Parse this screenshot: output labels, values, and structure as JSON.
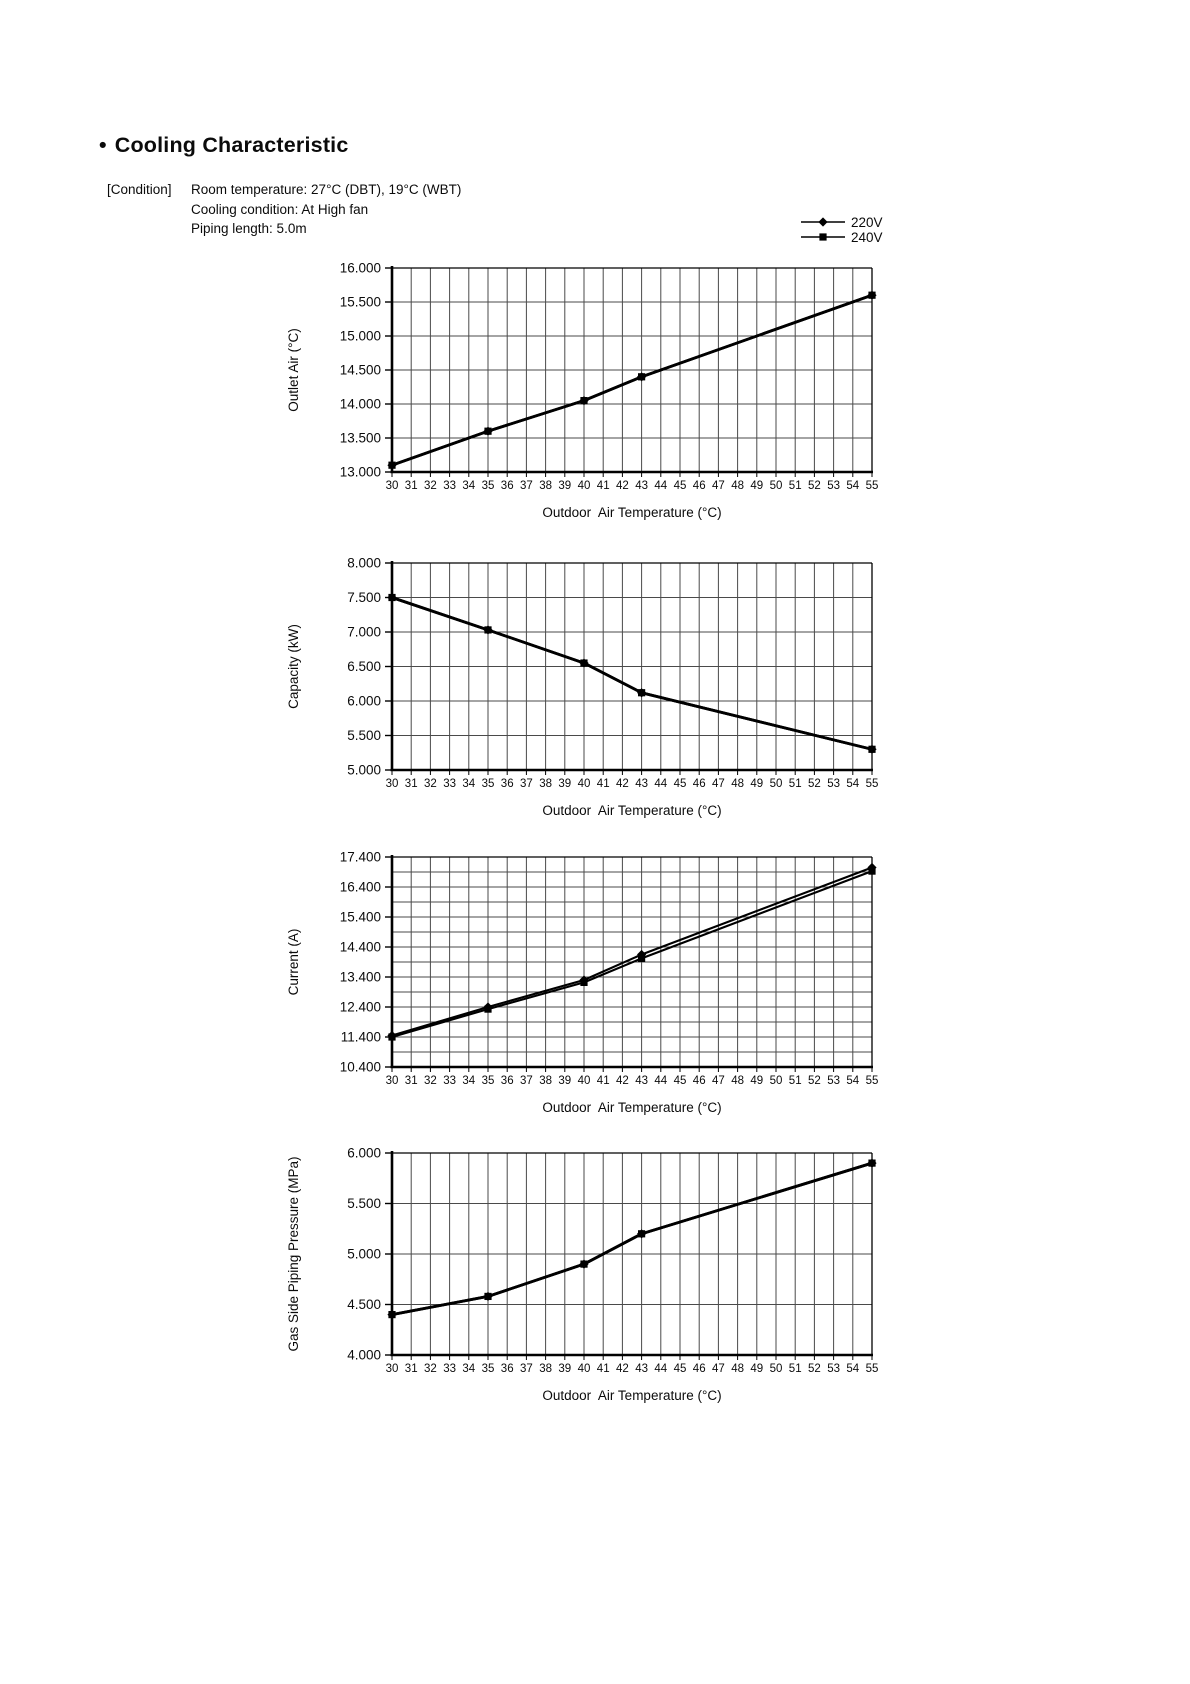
{
  "page": {
    "title_bullet": "•",
    "title": "Cooling Characteristic",
    "conditions": {
      "prefix": "[Condition]",
      "line1": "Room temperature: 27°C (DBT), 19°C (WBT)",
      "line2": "Cooling condition: At High fan",
      "line3": "Piping length: 5.0m"
    }
  },
  "legend": {
    "items": [
      {
        "label": "220V",
        "marker": "diamond"
      },
      {
        "label": "240V",
        "marker": "square"
      }
    ]
  },
  "x_axis": {
    "title": "Outdoor  Air Temperature (°C)",
    "min": 30,
    "max": 55,
    "step": 1
  },
  "colors": {
    "line": "#000000",
    "grid": "#4a4a4a",
    "text": "#0b0b0b"
  },
  "chart_data": [
    {
      "type": "line",
      "ylabel": "Outlet Air (°C)",
      "ylim": [
        13.0,
        16.0
      ],
      "ygrid_step": 0.5,
      "yticks": {
        "values": [
          16.0,
          15.5,
          15.0,
          14.5,
          14.0,
          13.5,
          13.0
        ],
        "labels": [
          "16.000",
          "15.500",
          "15.000",
          "14.500",
          "14.000",
          "13.500",
          "13.000"
        ]
      },
      "x": [
        30,
        35,
        40,
        43,
        55
      ],
      "series": [
        {
          "name": "220V",
          "marker": "diamond",
          "values": [
            13.1,
            13.6,
            14.05,
            14.4,
            15.6
          ]
        },
        {
          "name": "240V",
          "marker": "square",
          "values": [
            13.1,
            13.6,
            14.05,
            14.4,
            15.6
          ]
        }
      ]
    },
    {
      "type": "line",
      "ylabel": "Capacity (kW)",
      "ylim": [
        5.0,
        8.0
      ],
      "ygrid_step": 0.5,
      "yticks": {
        "values": [
          8.0,
          7.5,
          7.0,
          6.5,
          6.0,
          5.5,
          5.0
        ],
        "labels": [
          "8.000",
          "7.500",
          "7.000",
          "6.500",
          "6.000",
          "5.500",
          "5.000"
        ]
      },
      "x": [
        30,
        35,
        40,
        43,
        55
      ],
      "series": [
        {
          "name": "220V",
          "marker": "diamond",
          "values": [
            7.5,
            7.03,
            6.55,
            6.12,
            5.3
          ]
        },
        {
          "name": "240V",
          "marker": "square",
          "values": [
            7.5,
            7.03,
            6.55,
            6.12,
            5.3
          ]
        }
      ]
    },
    {
      "type": "line",
      "ylabel": "Current (A)",
      "ylim": [
        10.4,
        17.4
      ],
      "ygrid_step": 0.5,
      "yticks": {
        "values": [
          17.4,
          16.4,
          15.4,
          14.4,
          13.4,
          12.4,
          11.4,
          10.4
        ],
        "labels": [
          "17.400",
          "16.400",
          "15.400",
          "14.400",
          "13.400",
          "12.400",
          "11.400",
          "10.400"
        ]
      },
      "x": [
        30,
        35,
        40,
        43,
        55
      ],
      "series": [
        {
          "name": "220V",
          "marker": "diamond",
          "values": [
            11.45,
            12.4,
            13.3,
            14.15,
            17.05
          ]
        },
        {
          "name": "240V",
          "marker": "square",
          "values": [
            11.4,
            12.33,
            13.22,
            14.02,
            16.93
          ]
        }
      ]
    },
    {
      "type": "line",
      "ylabel": "Gas Side Piping Pressure (MPa)",
      "ylim": [
        4.0,
        6.0
      ],
      "ygrid_step": 0.5,
      "yticks": {
        "values": [
          6.0,
          5.5,
          5.0,
          4.5,
          4.0
        ],
        "labels": [
          "6.000",
          "5.500",
          "5.000",
          "4.500",
          "4.000"
        ]
      },
      "x": [
        30,
        35,
        40,
        43,
        55
      ],
      "series": [
        {
          "name": "220V",
          "marker": "diamond",
          "values": [
            4.4,
            4.58,
            4.9,
            5.2,
            5.9
          ]
        },
        {
          "name": "240V",
          "marker": "square",
          "values": [
            4.4,
            4.58,
            4.9,
            5.2,
            5.9
          ]
        }
      ]
    }
  ]
}
